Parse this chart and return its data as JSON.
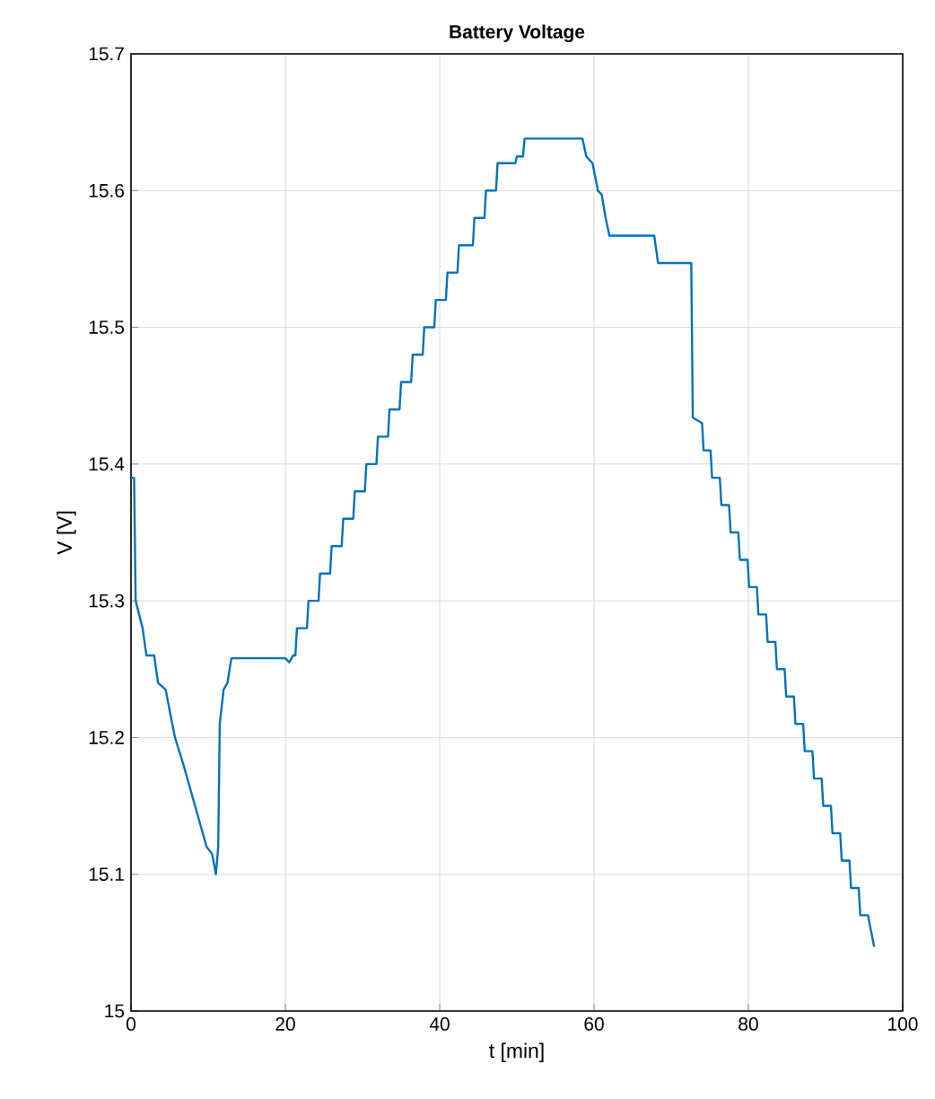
{
  "chart_data": {
    "type": "line",
    "title": "**Battery Voltage**",
    "xlabel": "t [min]",
    "ylabel": "V [V]",
    "xlim": [
      0,
      100
    ],
    "xticks": [
      0,
      20,
      40,
      60,
      80,
      100
    ],
    "ylim": [
      15,
      15.7
    ],
    "yticks": [
      15,
      15.1,
      15.2,
      15.3,
      15.4,
      15.5,
      15.6,
      15.7
    ],
    "grid": true,
    "line_style": "solid",
    "marker": "none",
    "series": [
      {
        "color": "#0072bd",
        "x": [
          0,
          0.4,
          0.6,
          1.5,
          2,
          3,
          3.5,
          4.5,
          5,
          5.7,
          6.8,
          7.8,
          8.8,
          9.8,
          10.5,
          11,
          11.3,
          11.5,
          12,
          12.5,
          13,
          20,
          20.5,
          21,
          21.3,
          21.5,
          22.8,
          23,
          24.3,
          24.5,
          25.8,
          26,
          27.3,
          27.5,
          28.8,
          29,
          30.3,
          30.5,
          31.8,
          32,
          33.3,
          33.5,
          34.8,
          35,
          36.3,
          36.5,
          37.8,
          38,
          39.3,
          39.5,
          40.8,
          41,
          42.3,
          42.5,
          44.3,
          44.5,
          45.8,
          46,
          47.3,
          47.5,
          49.8,
          50,
          50.8,
          51,
          58.5,
          59,
          59.8,
          60.5,
          61,
          61.5,
          62,
          67.8,
          68.3,
          72.6,
          72.8,
          74,
          74.2,
          75.1,
          75.3,
          76.3,
          76.5,
          77.5,
          77.7,
          78.7,
          78.9,
          79.9,
          80.1,
          81.1,
          81.3,
          82.3,
          82.5,
          83.5,
          83.7,
          84.7,
          84.9,
          85.9,
          86.1,
          87.1,
          87.3,
          88.3,
          88.5,
          89.5,
          89.7,
          90.7,
          90.9,
          91.9,
          92.1,
          93.1,
          93.3,
          94.3,
          94.5,
          95.5,
          96.3
        ],
        "values": [
          15.39,
          15.39,
          15.3,
          15.28,
          15.26,
          15.26,
          15.24,
          15.235,
          15.22,
          15.2,
          15.18,
          15.16,
          15.14,
          15.12,
          15.115,
          15.1,
          15.12,
          15.21,
          15.235,
          15.24,
          15.258,
          15.258,
          15.255,
          15.26,
          15.26,
          15.28,
          15.28,
          15.3,
          15.3,
          15.32,
          15.32,
          15.34,
          15.34,
          15.36,
          15.36,
          15.38,
          15.38,
          15.4,
          15.4,
          15.42,
          15.42,
          15.44,
          15.44,
          15.46,
          15.46,
          15.48,
          15.48,
          15.5,
          15.5,
          15.52,
          15.52,
          15.54,
          15.54,
          15.56,
          15.56,
          15.58,
          15.58,
          15.6,
          15.6,
          15.62,
          15.62,
          15.625,
          15.625,
          15.638,
          15.638,
          15.625,
          15.62,
          15.6,
          15.597,
          15.58,
          15.567,
          15.567,
          15.547,
          15.547,
          15.434,
          15.43,
          15.41,
          15.41,
          15.39,
          15.39,
          15.37,
          15.37,
          15.35,
          15.35,
          15.33,
          15.33,
          15.31,
          15.31,
          15.29,
          15.29,
          15.27,
          15.27,
          15.25,
          15.25,
          15.23,
          15.23,
          15.21,
          15.21,
          15.19,
          15.19,
          15.17,
          15.17,
          15.15,
          15.15,
          15.13,
          15.13,
          15.11,
          15.11,
          15.09,
          15.09,
          15.07,
          15.07,
          15.047
        ]
      }
    ]
  }
}
